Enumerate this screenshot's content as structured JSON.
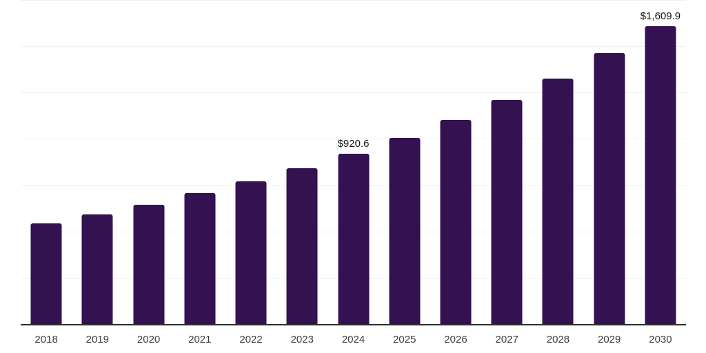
{
  "chart_data": {
    "type": "bar",
    "title": "",
    "xlabel": "",
    "ylabel": "",
    "categories": [
      "2018",
      "2019",
      "2020",
      "2021",
      "2022",
      "2023",
      "2024",
      "2025",
      "2026",
      "2027",
      "2028",
      "2029",
      "2030"
    ],
    "values": [
      545,
      591,
      644,
      706,
      769,
      841,
      920.6,
      1005,
      1102,
      1209,
      1327,
      1463,
      1609.9
    ],
    "data_labels": [
      "",
      "",
      "",
      "",
      "",
      "",
      "$920.6",
      "",
      "",
      "",
      "",
      "",
      "$1,609.9"
    ],
    "ylim": [
      0,
      1750
    ],
    "grid_step": 250,
    "grid": true,
    "legend": false,
    "y_tick_labels_visible": false,
    "colors": {
      "bar": "#341150",
      "axis": "#2d2d2d",
      "gridline": "#f0f0f1",
      "data_label": "#111111",
      "x_tick_label": "#3c3c3c",
      "background": "#ffffff"
    }
  }
}
